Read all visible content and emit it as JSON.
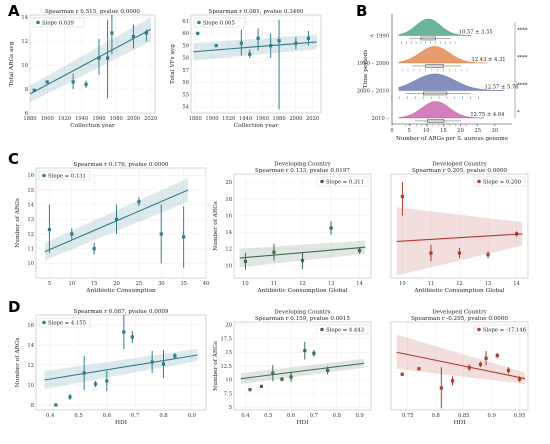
{
  "panel_letters": [
    "A",
    "B",
    "C",
    "D"
  ],
  "chart_data": [
    {
      "id": "A1",
      "type": "scatter",
      "title": "Spearman r 0.515, pvalue 0.0000",
      "xlabel": "Collection year",
      "ylabel": "Total ARGs avg",
      "xlim": [
        1880,
        2025
      ],
      "ylim": [
        6,
        14.2
      ],
      "xticks": [
        1880,
        1900,
        1920,
        1940,
        1960,
        1980,
        2000,
        2020
      ],
      "yticks": [
        6,
        8,
        10,
        12,
        14
      ],
      "grid": true,
      "legend": "top-left",
      "color": "#2e7d8c",
      "fit": {
        "label": "Slope 0.039",
        "x": [
          1880,
          2020
        ],
        "y": [
          7.6,
          13.0
        ],
        "ci": [
          [
            6.9,
            8.3
          ],
          [
            12.0,
            14.0
          ]
        ]
      },
      "points": [
        {
          "x": 1885,
          "y": 7.9,
          "lo": 7.9,
          "hi": 7.9
        },
        {
          "x": 1900,
          "y": 8.6,
          "lo": 8.6,
          "hi": 8.6
        },
        {
          "x": 1930,
          "y": 8.6,
          "lo": 8.0,
          "hi": 9.3
        },
        {
          "x": 1945,
          "y": 8.4,
          "lo": 8.1,
          "hi": 8.7
        },
        {
          "x": 1960,
          "y": 10.6,
          "lo": 9.2,
          "hi": 12.2
        },
        {
          "x": 1970,
          "y": 10.6,
          "lo": 7.2,
          "hi": 13.8
        },
        {
          "x": 1975,
          "y": 12.7,
          "lo": 10.9,
          "hi": 14.2
        },
        {
          "x": 2000,
          "y": 12.4,
          "lo": 11.4,
          "hi": 13.4
        },
        {
          "x": 2015,
          "y": 12.7,
          "lo": 12.0,
          "hi": 13.0
        }
      ]
    },
    {
      "id": "A2",
      "type": "scatter",
      "title": "Spearman r 0.081, pvalue 0.3460",
      "xlabel": "Collection year",
      "ylabel": "Total VFs avg",
      "xlim": [
        1875,
        2030
      ],
      "ylim": [
        53.5,
        61.5
      ],
      "xticks": [
        1880,
        1900,
        1920,
        1940,
        1960,
        1980,
        2000,
        2020
      ],
      "yticks": [
        54,
        55,
        56,
        57,
        58,
        59,
        60,
        61
      ],
      "grid": true,
      "legend": "top-left",
      "color": "#2e7d8c",
      "fit": {
        "label": "Slope 0.005",
        "x": [
          1878,
          2025
        ],
        "y": [
          58.5,
          59.3
        ],
        "ci": [
          [
            57.8,
            59.2
          ],
          [
            58.7,
            59.9
          ]
        ]
      },
      "points": [
        {
          "x": 1883,
          "y": 60.0,
          "lo": 60.0,
          "hi": 60.0
        },
        {
          "x": 1905,
          "y": 59.0,
          "lo": 59.0,
          "hi": 59.0
        },
        {
          "x": 1935,
          "y": 59.2,
          "lo": 58.2,
          "hi": 60.3
        },
        {
          "x": 1945,
          "y": 58.3,
          "lo": 58.0,
          "hi": 58.7
        },
        {
          "x": 1955,
          "y": 59.6,
          "lo": 58.6,
          "hi": 60.4
        },
        {
          "x": 1970,
          "y": 59.0,
          "lo": 58.0,
          "hi": 60.0
        },
        {
          "x": 1980,
          "y": 59.4,
          "lo": 53.8,
          "hi": 61.1
        },
        {
          "x": 2000,
          "y": 59.2,
          "lo": 58.7,
          "hi": 59.7
        },
        {
          "x": 2015,
          "y": 59.6,
          "lo": 59.0,
          "hi": 60.2
        }
      ]
    },
    {
      "id": "B",
      "type": "raincloud",
      "xlabel": "Number of ARGs per S. aureus genome",
      "ylabel": "Time periods",
      "xlim": [
        0,
        35
      ],
      "xticks": [
        0,
        5,
        10,
        15,
        20,
        25,
        30
      ],
      "groups": [
        {
          "label": "< 1990",
          "mean_sd": "10.57 ± 3.55",
          "color": "#3a9b7a",
          "mean": 10.57,
          "sd": 3.55
        },
        {
          "label": "1990 – 2000",
          "mean_sd": "12.43 ± 4.31",
          "color": "#e07b3c",
          "mean": 12.43,
          "sd": 4.31
        },
        {
          "label": "2000 – 2010",
          "mean_sd": "12.57 ± 5.76",
          "color": "#5a6aa8",
          "mean": 12.57,
          "sd": 5.76
        },
        {
          "label": "2010 –",
          "mean_sd": "12.75 ± 4.04",
          "color": "#c553a6",
          "mean": 12.75,
          "sd": 4.04
        }
      ],
      "significance": [
        "****",
        "****",
        "****",
        "*"
      ]
    },
    {
      "id": "C1",
      "type": "scatter",
      "title": "Spearman r 0.176, pvalue 0.0000",
      "xlabel": "Antibiotic Consumption",
      "ylabel": "Number of ARGs",
      "xlim": [
        2,
        40
      ],
      "ylim": [
        9,
        16.5
      ],
      "xticks": [
        5,
        10,
        15,
        20,
        25,
        30,
        35,
        40
      ],
      "yticks": [
        10,
        11,
        12,
        13,
        14,
        15,
        16
      ],
      "grid": true,
      "legend": "top-left",
      "color": "#2e7d8c",
      "fit": {
        "label": "Slope = 0.131",
        "x": [
          4,
          36
        ],
        "y": [
          10.8,
          15.0
        ],
        "ci": [
          [
            10.2,
            11.4
          ],
          [
            14.2,
            15.8
          ]
        ]
      },
      "points": [
        {
          "x": 5,
          "y": 12.3,
          "lo": 10.7,
          "hi": 14.0
        },
        {
          "x": 10,
          "y": 12.0,
          "lo": 11.6,
          "hi": 12.4
        },
        {
          "x": 15,
          "y": 11.0,
          "lo": 10.6,
          "hi": 11.4
        },
        {
          "x": 20,
          "y": 13.0,
          "lo": 12.0,
          "hi": 14.0
        },
        {
          "x": 25,
          "y": 14.2,
          "lo": 13.9,
          "hi": 14.5
        },
        {
          "x": 30,
          "y": 12.0,
          "lo": 10.0,
          "hi": 14.0
        },
        {
          "x": 35,
          "y": 11.8,
          "lo": 9.7,
          "hi": 13.9
        }
      ]
    },
    {
      "id": "C2",
      "type": "scatter",
      "title": "Developing Country\nSpearman r 0.133, pvalue 0.0197",
      "xlabel": "Antibiotic Consumption Global",
      "ylabel": "Number of ARGs",
      "xlim": [
        9.6,
        14.4
      ],
      "ylim": [
        8.5,
        21
      ],
      "xticks": [
        10,
        11,
        12,
        13,
        14
      ],
      "yticks": [
        10,
        12,
        14,
        16,
        18,
        20
      ],
      "grid": true,
      "legend": "top-right",
      "color": "#3e6b4f",
      "fit": {
        "label": "Slope = 0.311",
        "x": [
          9.8,
          14.2
        ],
        "y": [
          10.9,
          12.2
        ],
        "ci": [
          [
            9.8,
            12.0
          ],
          [
            11.4,
            13.0
          ]
        ]
      },
      "points": [
        {
          "x": 10,
          "y": 10.5,
          "lo": 9.5,
          "hi": 11.5
        },
        {
          "x": 11,
          "y": 11.6,
          "lo": 10.6,
          "hi": 12.6
        },
        {
          "x": 12,
          "y": 10.6,
          "lo": 9.6,
          "hi": 11.6
        },
        {
          "x": 13,
          "y": 14.5,
          "lo": 13.7,
          "hi": 15.3
        },
        {
          "x": 14,
          "y": 11.8,
          "lo": 11.4,
          "hi": 12.2
        }
      ]
    },
    {
      "id": "C3",
      "type": "scatter",
      "title": "Developed Country\nSpearman r 0.205, pvalue 0.0000",
      "xlabel": "Antibiotic Consumption Global",
      "ylabel": "",
      "xlim": [
        9.6,
        14.4
      ],
      "ylim": [
        8.5,
        21
      ],
      "xticks": [
        10,
        11,
        12,
        13,
        14
      ],
      "yticks": [],
      "grid": true,
      "legend": "top-right",
      "color": "#b03a2e",
      "fit": {
        "label": "Slope = 0.200",
        "x": [
          9.8,
          14.2
        ],
        "y": [
          12.9,
          13.8
        ],
        "ci": [
          [
            8.8,
            17.0
          ],
          [
            12.4,
            15.2
          ]
        ]
      },
      "points": [
        {
          "x": 10,
          "y": 18.3,
          "lo": 16.0,
          "hi": 20.0
        },
        {
          "x": 11,
          "y": 11.5,
          "lo": 10.5,
          "hi": 12.5
        },
        {
          "x": 12,
          "y": 11.5,
          "lo": 10.9,
          "hi": 12.1
        },
        {
          "x": 13,
          "y": 11.3,
          "lo": 10.9,
          "hi": 11.7
        },
        {
          "x": 14,
          "y": 13.8,
          "lo": 13.5,
          "hi": 14.1
        }
      ]
    },
    {
      "id": "D1",
      "type": "scatter",
      "title": "Spearman r 0.087, pvalue 0.0009",
      "xlabel": "HDI",
      "ylabel": "Number of ARGs",
      "xlim": [
        0.35,
        0.95
      ],
      "ylim": [
        7.5,
        17
      ],
      "xticks": [
        0.4,
        0.5,
        0.6,
        0.7,
        0.8,
        0.9
      ],
      "yticks": [
        8,
        10,
        12,
        14,
        16
      ],
      "grid": true,
      "legend": "top-left",
      "color": "#2e7d8c",
      "fit": {
        "label": "Slope = 4.155",
        "x": [
          0.38,
          0.92
        ],
        "y": [
          10.5,
          13.0
        ],
        "ci": [
          [
            9.6,
            11.4
          ],
          [
            12.4,
            13.6
          ]
        ]
      },
      "points": [
        {
          "x": 0.42,
          "y": 8.0,
          "lo": 8.0,
          "hi": 8.0
        },
        {
          "x": 0.47,
          "y": 8.8,
          "lo": 8.5,
          "hi": 9.1
        },
        {
          "x": 0.52,
          "y": 11.2,
          "lo": 9.5,
          "hi": 12.9
        },
        {
          "x": 0.56,
          "y": 10.1,
          "lo": 9.8,
          "hi": 10.4
        },
        {
          "x": 0.6,
          "y": 10.4,
          "lo": 9.4,
          "hi": 11.4
        },
        {
          "x": 0.66,
          "y": 15.3,
          "lo": 13.6,
          "hi": 17.0
        },
        {
          "x": 0.69,
          "y": 14.8,
          "lo": 14.2,
          "hi": 15.4
        },
        {
          "x": 0.76,
          "y": 12.3,
          "lo": 11.2,
          "hi": 13.4
        },
        {
          "x": 0.8,
          "y": 12.1,
          "lo": 10.7,
          "hi": 13.5
        },
        {
          "x": 0.84,
          "y": 12.9,
          "lo": 12.6,
          "hi": 13.2
        }
      ]
    },
    {
      "id": "D2",
      "type": "scatter",
      "title": "Developing Country\nSpearman r 0.159, pvalue 0.0015",
      "xlabel": "HDI",
      "ylabel": "Number of ARGs",
      "xlim": [
        0.35,
        0.95
      ],
      "ylim": [
        4.5,
        20.5
      ],
      "xticks": [
        0.4,
        0.5,
        0.6,
        0.7,
        0.8,
        0.9
      ],
      "yticks": [
        5,
        7.5,
        10,
        12.5,
        15,
        17.5,
        20
      ],
      "grid": true,
      "legend": "top-right",
      "color": "#3e6b4f",
      "fit": {
        "label": "Slope = 4.443",
        "x": [
          0.38,
          0.92
        ],
        "y": [
          10.2,
          13.0
        ],
        "ci": [
          [
            9.2,
            11.2
          ],
          [
            12.2,
            13.8
          ]
        ]
      },
      "points": [
        {
          "x": 0.42,
          "y": 8.2,
          "lo": 8.2,
          "hi": 8.2
        },
        {
          "x": 0.47,
          "y": 8.8,
          "lo": 8.5,
          "hi": 9.1
        },
        {
          "x": 0.52,
          "y": 11.2,
          "lo": 9.7,
          "hi": 12.7
        },
        {
          "x": 0.56,
          "y": 10.1,
          "lo": 9.7,
          "hi": 10.5
        },
        {
          "x": 0.6,
          "y": 10.5,
          "lo": 9.6,
          "hi": 11.4
        },
        {
          "x": 0.66,
          "y": 15.3,
          "lo": 13.7,
          "hi": 16.9
        },
        {
          "x": 0.7,
          "y": 14.8,
          "lo": 14.2,
          "hi": 15.4
        },
        {
          "x": 0.76,
          "y": 11.7,
          "lo": 11.0,
          "hi": 12.4
        }
      ]
    },
    {
      "id": "D3",
      "type": "scatter",
      "title": "Developed Country\nSpearman r -0.295, pvalue 0.0000",
      "xlabel": "HDI",
      "ylabel": "",
      "xlim": [
        0.72,
        0.965
      ],
      "ylim": [
        4.5,
        20.5
      ],
      "xticks": [
        0.75,
        0.8,
        0.85,
        0.9,
        0.95
      ],
      "yticks": [],
      "grid": true,
      "legend": "top-right",
      "color": "#b03a2e",
      "fit": {
        "label": "Slope = -17.146",
        "x": [
          0.73,
          0.96
        ],
        "y": [
          15.0,
          10.2
        ],
        "ci": [
          [
            12.0,
            18.2
          ],
          [
            9.2,
            11.3
          ]
        ]
      },
      "points": [
        {
          "x": 0.74,
          "y": 11.0,
          "lo": 11.0,
          "hi": 11.0
        },
        {
          "x": 0.77,
          "y": 12.0,
          "lo": 12.0,
          "hi": 12.0
        },
        {
          "x": 0.81,
          "y": 8.5,
          "lo": 4.8,
          "hi": 12.3
        },
        {
          "x": 0.83,
          "y": 9.8,
          "lo": 9.0,
          "hi": 10.6
        },
        {
          "x": 0.86,
          "y": 12.2,
          "lo": 11.6,
          "hi": 12.8
        },
        {
          "x": 0.88,
          "y": 12.8,
          "lo": 12.3,
          "hi": 13.3
        },
        {
          "x": 0.89,
          "y": 13.9,
          "lo": 12.6,
          "hi": 15.2
        },
        {
          "x": 0.91,
          "y": 14.4,
          "lo": 13.9,
          "hi": 14.9
        },
        {
          "x": 0.93,
          "y": 11.7,
          "lo": 11.1,
          "hi": 12.3
        },
        {
          "x": 0.95,
          "y": 10.1,
          "lo": 9.6,
          "hi": 10.6
        }
      ]
    }
  ]
}
